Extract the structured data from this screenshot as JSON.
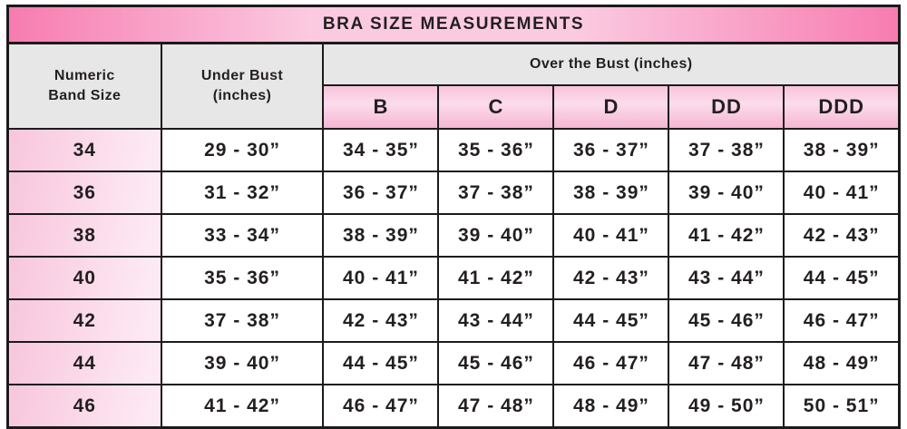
{
  "title": "BRA SIZE MEASUREMENTS",
  "colors": {
    "title_edge_pink": "#f77cb0",
    "title_center_pink": "#fbcae1",
    "header_grey": "#e8e7e8",
    "cup_pink_top": "#f8c3dc",
    "cup_pink_mid": "#fcdcec",
    "cup_pink_bottom": "#f5b6d3",
    "band_pink_start": "#f8c6dd",
    "band_pink_end": "#fde9f3",
    "border_black": "#1d1a1b",
    "text_black": "#231f20",
    "cell_white": "#ffffff"
  },
  "chart_data": {
    "type": "table",
    "title": "BRA SIZE MEASUREMENTS",
    "column_groups": {
      "band": "Numeric\nBand Size",
      "under_bust": "Under Bust\n(inches)",
      "over_bust": "Over the Bust (inches)"
    },
    "cup_headers": [
      "B",
      "C",
      "D",
      "DD",
      "DDD"
    ],
    "rows": [
      {
        "band": "34",
        "under_bust": "29 - 30”",
        "cups": [
          "34 - 35”",
          "35 - 36”",
          "36 - 37”",
          "37 - 38”",
          "38 - 39”"
        ]
      },
      {
        "band": "36",
        "under_bust": "31 - 32”",
        "cups": [
          "36 - 37”",
          "37 - 38”",
          "38 - 39”",
          "39 - 40”",
          "40 - 41”"
        ]
      },
      {
        "band": "38",
        "under_bust": "33 - 34”",
        "cups": [
          "38 - 39”",
          "39 - 40”",
          "40 - 41”",
          "41 - 42”",
          "42 - 43”"
        ]
      },
      {
        "band": "40",
        "under_bust": "35 - 36”",
        "cups": [
          "40 - 41”",
          "41 - 42”",
          "42 - 43”",
          "43 - 44”",
          "44 - 45”"
        ]
      },
      {
        "band": "42",
        "under_bust": "37 - 38”",
        "cups": [
          "42 - 43”",
          "43 - 44”",
          "44 - 45”",
          "45 - 46”",
          "46 - 47”"
        ]
      },
      {
        "band": "44",
        "under_bust": "39 - 40”",
        "cups": [
          "44 - 45”",
          "45 - 46”",
          "46 - 47”",
          "47 - 48”",
          "48 - 49”"
        ]
      },
      {
        "band": "46",
        "under_bust": "41 - 42”",
        "cups": [
          "46 - 47”",
          "47 - 48”",
          "48 - 49”",
          "49 - 50”",
          "50 - 51”"
        ]
      }
    ]
  }
}
